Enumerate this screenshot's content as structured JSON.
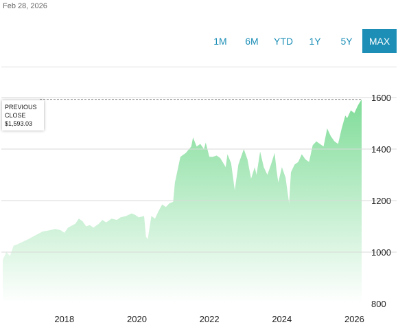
{
  "header": {
    "date": "Feb 28, 2026"
  },
  "range_buttons": [
    {
      "label": "1M",
      "active": false
    },
    {
      "label": "6M",
      "active": false
    },
    {
      "label": "YTD",
      "active": false
    },
    {
      "label": "1Y",
      "active": false
    },
    {
      "label": "5Y",
      "active": false
    },
    {
      "label": "MAX",
      "active": true
    }
  ],
  "tooltip": {
    "line1": "PREVIOUS",
    "line2": "CLOSE",
    "value": "$1,593.03"
  },
  "colors": {
    "accent": "#1d8fb7",
    "area_top": "#7fdc98",
    "area_bottom": "#ffffff"
  },
  "chart_data": {
    "type": "area",
    "previous_close": 1593.03,
    "ylim": [
      800,
      1680
    ],
    "xlim": [
      2016.3,
      2026.2
    ],
    "y_ticks": [
      800,
      1000,
      1200,
      1400,
      1600
    ],
    "y_tick_labels": [
      "800",
      "1000",
      "1200",
      "1400",
      "1600"
    ],
    "x_ticks": [
      2018,
      2020,
      2022,
      2024,
      2026
    ],
    "x_tick_labels": [
      "2018",
      "2020",
      "2022",
      "2024",
      "2026"
    ],
    "grid": true,
    "x": [
      2016.3,
      2016.4,
      2016.5,
      2016.6,
      2016.7,
      2016.85,
      2017.0,
      2017.2,
      2017.4,
      2017.6,
      2017.75,
      2017.9,
      2018.0,
      2018.1,
      2018.3,
      2018.4,
      2018.5,
      2018.6,
      2018.7,
      2018.8,
      2018.95,
      2019.05,
      2019.15,
      2019.3,
      2019.45,
      2019.55,
      2019.7,
      2019.85,
      2019.95,
      2020.05,
      2020.2,
      2020.25,
      2020.3,
      2020.4,
      2020.5,
      2020.6,
      2020.7,
      2020.8,
      2020.9,
      2021.0,
      2021.05,
      2021.2,
      2021.35,
      2021.5,
      2021.55,
      2021.65,
      2021.75,
      2021.85,
      2021.9,
      2022.0,
      2022.1,
      2022.2,
      2022.3,
      2022.45,
      2022.5,
      2022.6,
      2022.7,
      2022.8,
      2022.85,
      2022.95,
      2023.05,
      2023.15,
      2023.25,
      2023.3,
      2023.4,
      2023.5,
      2023.6,
      2023.7,
      2023.8,
      2023.85,
      2023.9,
      2024.0,
      2024.1,
      2024.2,
      2024.25,
      2024.35,
      2024.45,
      2024.55,
      2024.65,
      2024.75,
      2024.85,
      2024.95,
      2025.05,
      2025.15,
      2025.25,
      2025.35,
      2025.45,
      2025.55,
      2025.65,
      2025.75,
      2025.8,
      2025.9,
      2026.0,
      2026.1,
      2026.2
    ],
    "y": [
      970,
      1000,
      985,
      1025,
      1030,
      1040,
      1050,
      1065,
      1080,
      1085,
      1090,
      1085,
      1075,
      1095,
      1110,
      1130,
      1120,
      1100,
      1105,
      1095,
      1110,
      1125,
      1115,
      1130,
      1125,
      1135,
      1140,
      1150,
      1145,
      1135,
      1140,
      1060,
      1050,
      1140,
      1130,
      1160,
      1185,
      1175,
      1190,
      1195,
      1270,
      1370,
      1385,
      1410,
      1445,
      1410,
      1420,
      1400,
      1425,
      1370,
      1370,
      1375,
      1365,
      1330,
      1380,
      1345,
      1240,
      1340,
      1360,
      1400,
      1360,
      1285,
      1330,
      1300,
      1390,
      1330,
      1300,
      1340,
      1385,
      1320,
      1270,
      1330,
      1290,
      1190,
      1310,
      1340,
      1350,
      1380,
      1360,
      1350,
      1415,
      1430,
      1420,
      1410,
      1480,
      1450,
      1430,
      1420,
      1480,
      1530,
      1520,
      1550,
      1540,
      1570,
      1593
    ]
  }
}
